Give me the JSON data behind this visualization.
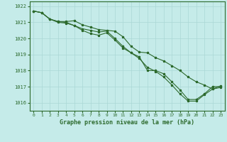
{
  "title": "Graphe pression niveau de la mer (hPa)",
  "background_color": "#c5ebe9",
  "grid_color": "#aad8d5",
  "line_color": "#2d6a2d",
  "marker_color": "#2d6a2d",
  "ylim": [
    1015.5,
    1022.3
  ],
  "xlim": [
    -0.5,
    23.5
  ],
  "yticks": [
    1016,
    1017,
    1018,
    1019,
    1020,
    1021,
    1022
  ],
  "xticks": [
    0,
    1,
    2,
    3,
    4,
    5,
    6,
    7,
    8,
    9,
    10,
    11,
    12,
    13,
    14,
    15,
    16,
    17,
    18,
    19,
    20,
    21,
    22,
    23
  ],
  "series1_x": [
    0,
    1,
    2,
    3,
    4,
    5,
    6,
    7,
    8,
    9,
    10,
    11,
    12,
    13,
    14,
    15,
    16,
    17,
    18,
    19,
    20,
    21,
    22,
    23
  ],
  "series1_y": [
    1021.7,
    1021.6,
    1021.2,
    1021.05,
    1021.05,
    1021.1,
    1020.85,
    1020.7,
    1020.55,
    1020.5,
    1020.45,
    1020.1,
    1019.5,
    1019.15,
    1019.1,
    1018.8,
    1018.6,
    1018.3,
    1018.0,
    1017.6,
    1017.3,
    1017.1,
    1016.85,
    1017.05
  ],
  "series2_x": [
    0,
    1,
    2,
    3,
    4,
    5,
    6,
    7,
    8,
    9,
    10,
    11,
    12,
    13,
    14,
    15,
    16,
    17,
    18,
    19,
    20,
    21,
    22,
    23
  ],
  "series2_y": [
    1021.7,
    1021.6,
    1021.2,
    1021.05,
    1021.0,
    1020.8,
    1020.6,
    1020.5,
    1020.4,
    1020.45,
    1020.0,
    1019.5,
    1019.1,
    1018.85,
    1018.0,
    1018.0,
    1017.8,
    1017.3,
    1016.8,
    1016.2,
    1016.2,
    1016.55,
    1017.0,
    1017.0
  ],
  "series3_x": [
    0,
    1,
    2,
    3,
    4,
    5,
    6,
    7,
    8,
    9,
    10,
    11,
    12,
    13,
    14,
    15,
    16,
    17,
    18,
    19,
    20,
    21,
    22,
    23
  ],
  "series3_y": [
    1021.7,
    1021.6,
    1021.2,
    1021.0,
    1020.95,
    1020.8,
    1020.5,
    1020.3,
    1020.2,
    1020.35,
    1019.9,
    1019.4,
    1019.1,
    1018.75,
    1018.2,
    1017.95,
    1017.6,
    1017.1,
    1016.55,
    1016.1,
    1016.1,
    1016.5,
    1016.85,
    1016.95
  ]
}
